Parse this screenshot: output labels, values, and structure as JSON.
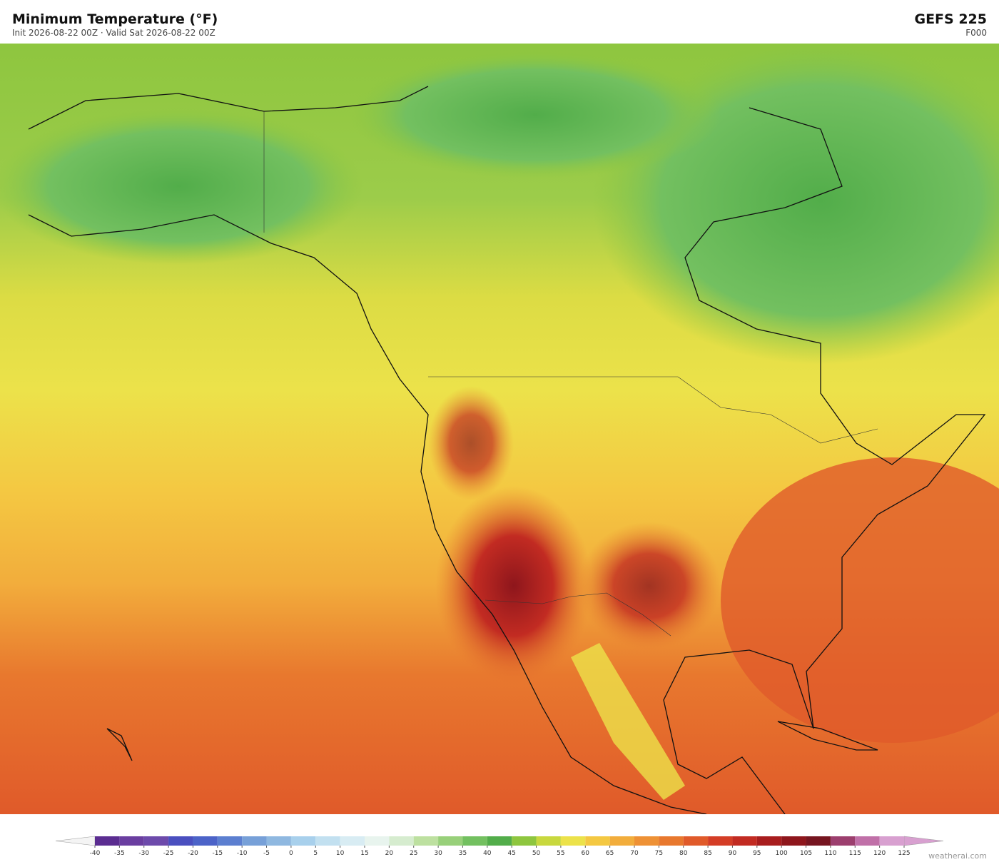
{
  "header": {
    "title": "Minimum Temperature  (°F)",
    "subtitle": "Init 2026-08-22 00Z   ·   Valid Sat 2026-08-22 00Z",
    "model": "GEFS  225",
    "forecast_hour": "F000"
  },
  "colorbar": {
    "ticks": [
      -40,
      -35,
      -30,
      -25,
      -20,
      -15,
      -10,
      -5,
      0,
      5,
      10,
      15,
      20,
      25,
      30,
      35,
      40,
      45,
      50,
      55,
      60,
      65,
      70,
      75,
      80,
      85,
      90,
      95,
      100,
      105,
      110,
      115,
      120,
      125
    ],
    "colors": [
      "#5b2d91",
      "#6a3ea0",
      "#6d4aab",
      "#4a4fbf",
      "#4c63c8",
      "#5c7fd0",
      "#77a0d8",
      "#8fb8e0",
      "#a8d0ec",
      "#c2e0f0",
      "#d8ecf3",
      "#e8f4ee",
      "#d6eccf",
      "#bde0a0",
      "#98d07a",
      "#73c060",
      "#52ad4a",
      "#8ec63f",
      "#c8d83e",
      "#ece24a",
      "#f4c842",
      "#f2ad3c",
      "#ee9135",
      "#e8782e",
      "#e05a2a",
      "#d43d26",
      "#c22b22",
      "#a81d1e",
      "#8e161c",
      "#761520",
      "#9c3f6e",
      "#c070a8",
      "#d8a0d0"
    ],
    "under_color": "#f4f4f4",
    "over_color": "#d8a0d0"
  },
  "credit": "weatherai.com"
}
